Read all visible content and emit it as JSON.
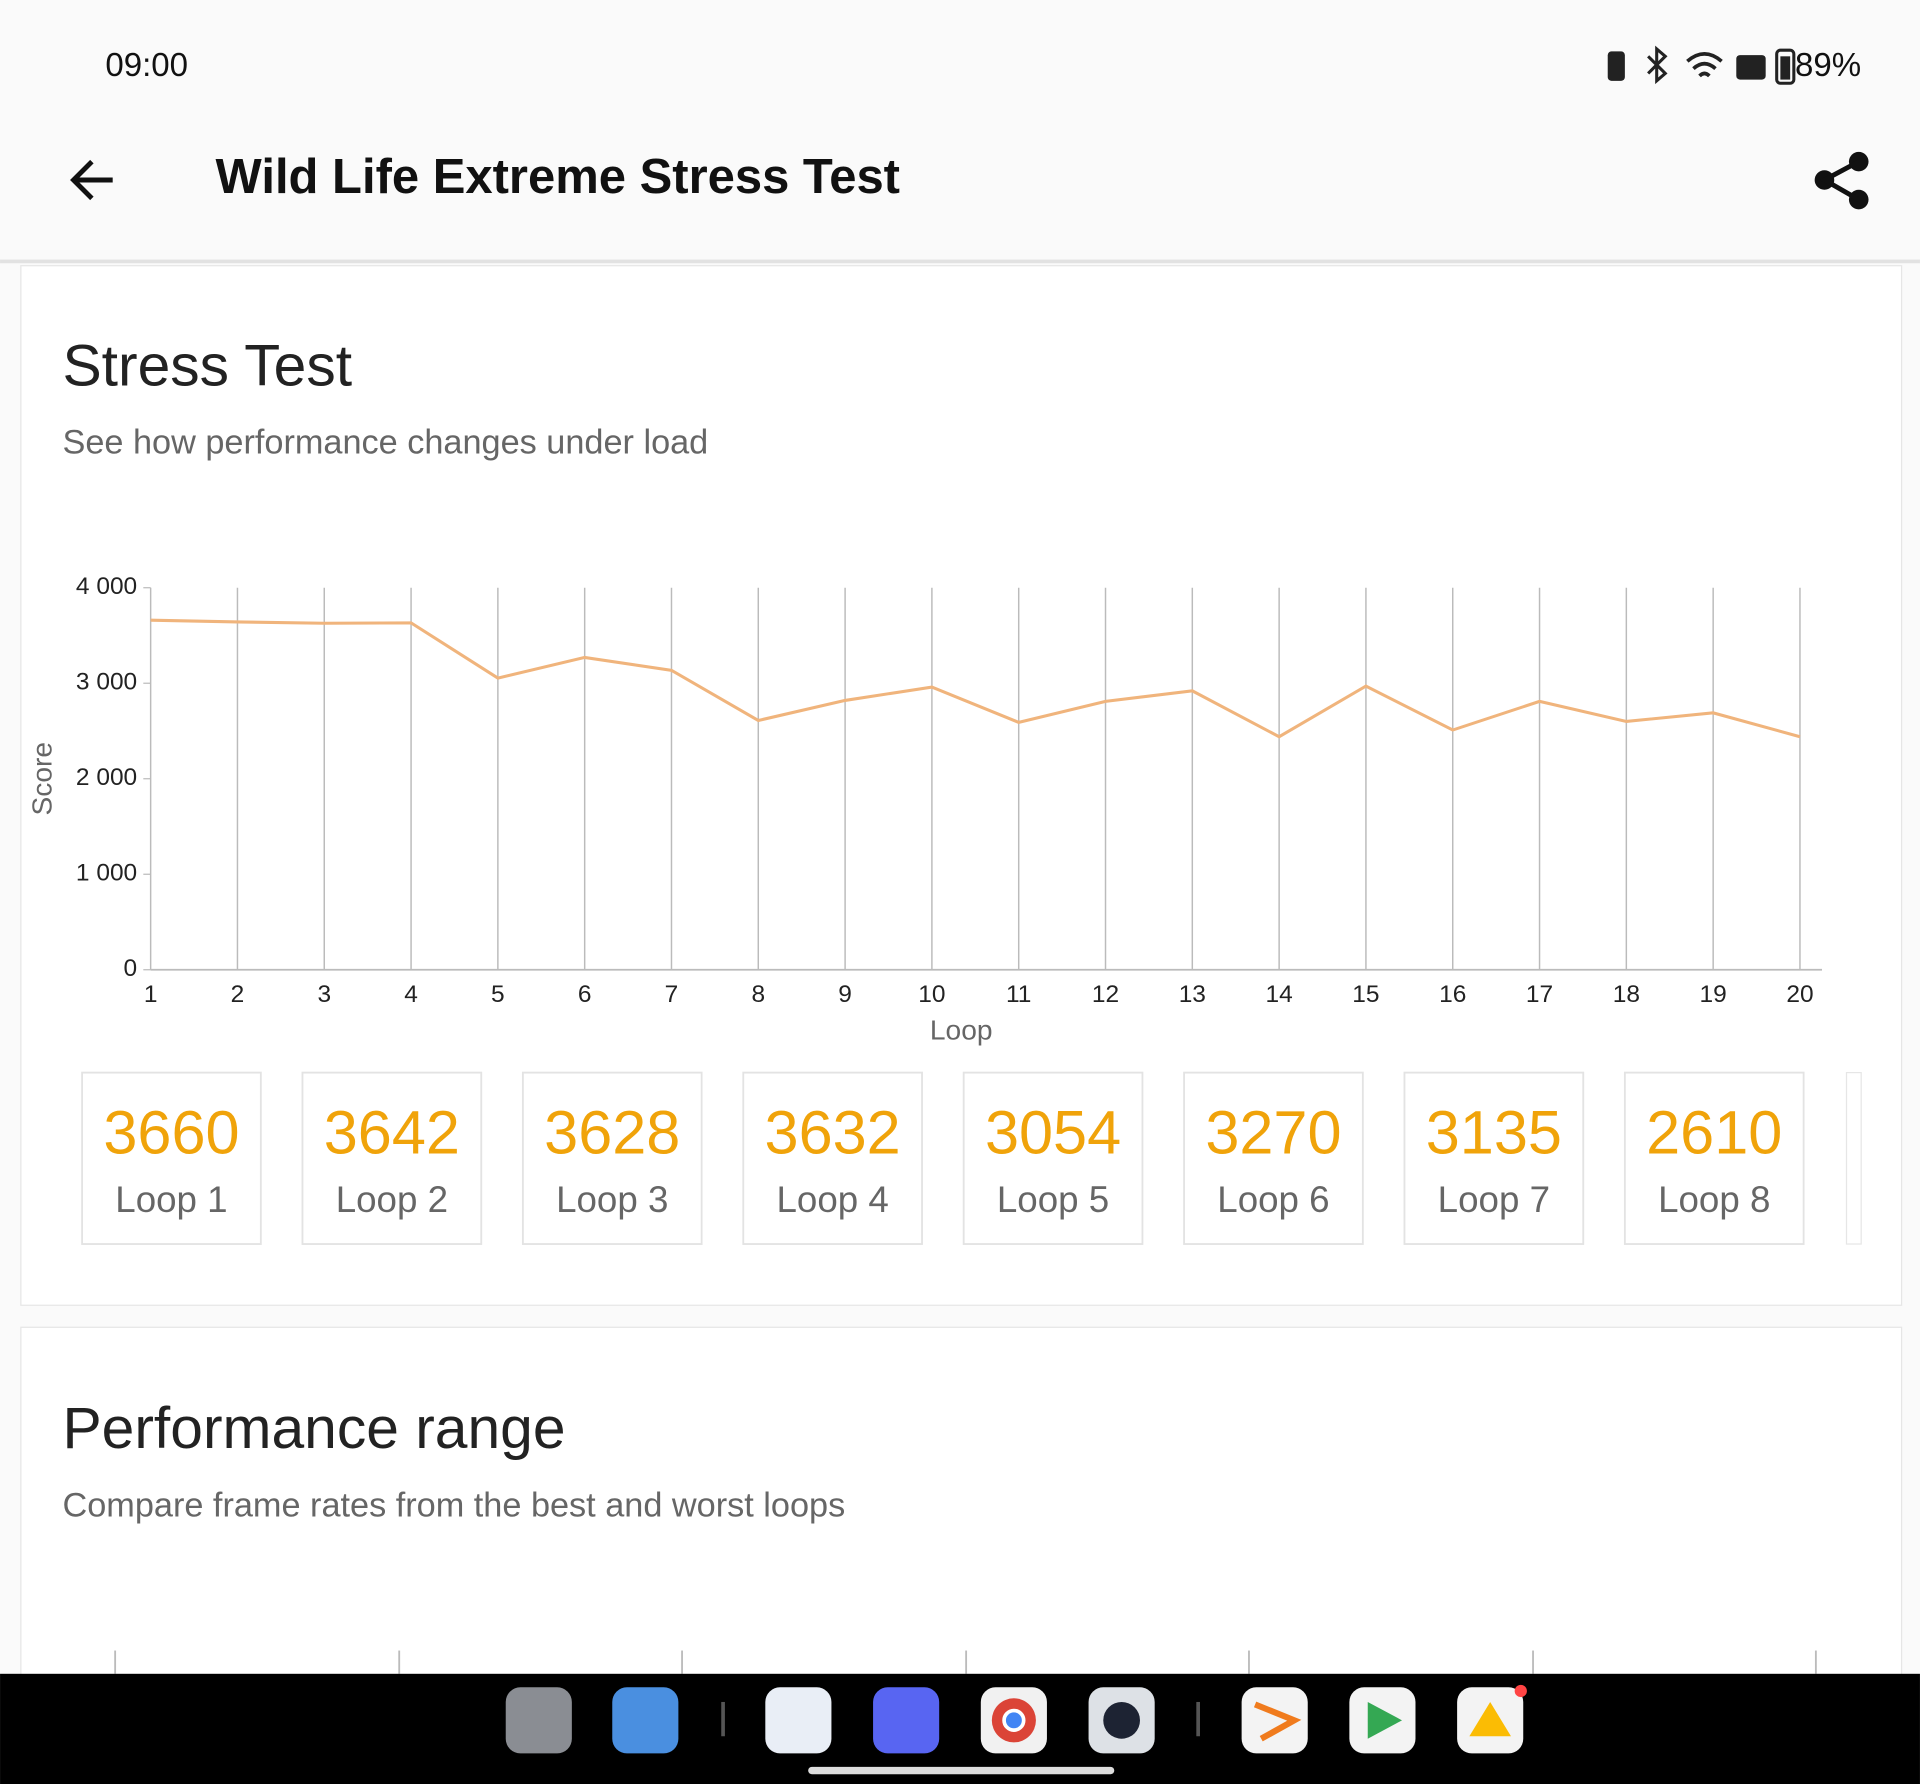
{
  "status_bar": {
    "time": "09:00",
    "battery": "89%"
  },
  "app_bar": {
    "title": "Wild Life Extreme Stress Test"
  },
  "stress_card": {
    "title": "Stress Test",
    "subtitle": "See how performance changes under load"
  },
  "chart_data": {
    "type": "line",
    "xlabel": "Loop",
    "ylabel": "Score",
    "categories": [
      "1",
      "2",
      "3",
      "4",
      "5",
      "6",
      "7",
      "8",
      "9",
      "10",
      "11",
      "12",
      "13",
      "14",
      "15",
      "16",
      "17",
      "18",
      "19",
      "20"
    ],
    "values": [
      3660,
      3642,
      3628,
      3632,
      3054,
      3270,
      3135,
      2610,
      2820,
      2960,
      2590,
      2810,
      2920,
      2440,
      2970,
      2510,
      2810,
      2600,
      2690,
      2440
    ],
    "color": "#f0b47c",
    "ylim": [
      0,
      4000
    ],
    "yticks": [
      0,
      {
        "value": 1000,
        "label": "1 000"
      },
      {
        "value": 2000,
        "label": "2 000"
      },
      {
        "value": 3000,
        "label": "3 000"
      },
      {
        "value": 4000,
        "label": "4 000"
      }
    ],
    "grid": true
  },
  "loop_cards": [
    "Loop 1",
    "Loop 2",
    "Loop 3",
    "Loop 4",
    "Loop 5",
    "Loop 6",
    "Loop 7",
    "Loop 8"
  ],
  "performance_card": {
    "title": "Performance range",
    "subtitle": "Compare frame rates from the best and worst loops"
  }
}
